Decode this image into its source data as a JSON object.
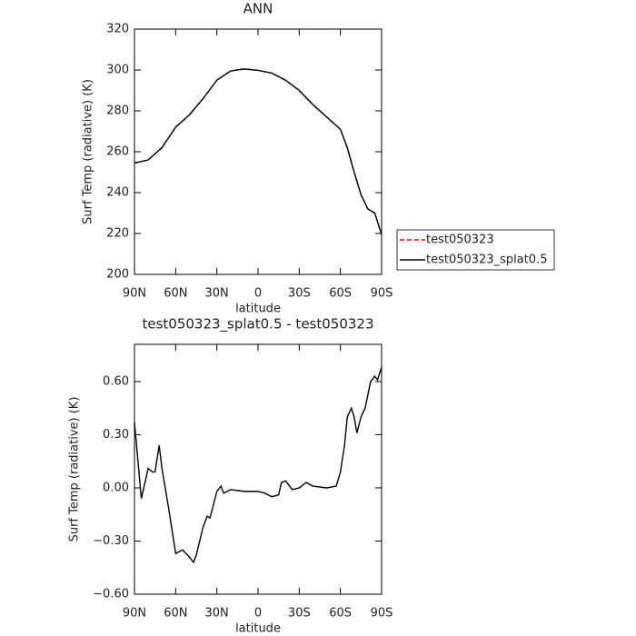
{
  "chart_data": [
    {
      "type": "line",
      "title": "ANN",
      "xlabel": "latitude",
      "ylabel": "Surf Temp (radiative) (K)",
      "x": [
        90,
        80,
        70,
        60,
        50,
        40,
        30,
        20,
        10,
        0,
        -10,
        -20,
        -30,
        -40,
        -50,
        -60,
        -65,
        -70,
        -75,
        -80,
        -85,
        -90
      ],
      "series": [
        {
          "name": "test050323",
          "color": "#e00000",
          "dash": true,
          "values": [
            254.5,
            256,
            262,
            272,
            278,
            286,
            295,
            299.5,
            300.5,
            299.8,
            298.5,
            295,
            290,
            283,
            277,
            271,
            262,
            250,
            239,
            232,
            230,
            219.5
          ]
        },
        {
          "name": "test050323_splat0.5",
          "color": "#000000",
          "dash": false,
          "values": [
            254.5,
            256,
            262,
            272,
            278,
            286,
            295,
            299.5,
            300.5,
            299.8,
            298.5,
            295,
            290,
            283,
            277,
            271,
            262,
            250,
            239,
            232,
            230,
            219.5
          ]
        }
      ],
      "xlim": [
        90,
        -90
      ],
      "xticks": [
        {
          "value": 90,
          "label": "90N"
        },
        {
          "value": 60,
          "label": "60N"
        },
        {
          "value": 30,
          "label": "30N"
        },
        0,
        {
          "value": -30,
          "label": "30S"
        },
        {
          "value": -60,
          "label": "60S"
        },
        {
          "value": -90,
          "label": "90S"
        }
      ],
      "ylim": [
        200,
        320
      ],
      "yticks": [
        200,
        220,
        240,
        260,
        280,
        300,
        320
      ],
      "legend": "right"
    },
    {
      "type": "line",
      "title": "test050323_splat0.5 - test050323",
      "xlabel": "latitude",
      "ylabel": "Surf Temp (radiative) (K)",
      "x": [
        90,
        85,
        80,
        77,
        75,
        72,
        70,
        65,
        60,
        55,
        50,
        47,
        45,
        40,
        37,
        35,
        30,
        27,
        25,
        20,
        10,
        0,
        -5,
        -10,
        -15,
        -17,
        -20,
        -25,
        -30,
        -35,
        -40,
        -50,
        -57,
        -60,
        -63,
        -65,
        -68,
        -70,
        -72,
        -75,
        -78,
        -82,
        -85,
        -87,
        -90
      ],
      "values": [
        0.37,
        -0.06,
        0.11,
        0.09,
        0.09,
        0.24,
        0.11,
        -0.12,
        -0.37,
        -0.35,
        -0.39,
        -0.42,
        -0.38,
        -0.22,
        -0.16,
        -0.17,
        -0.02,
        0.01,
        -0.03,
        -0.01,
        -0.02,
        -0.02,
        -0.03,
        -0.05,
        -0.04,
        0.03,
        0.04,
        -0.01,
        0.0,
        0.03,
        0.01,
        0.0,
        0.01,
        0.09,
        0.24,
        0.4,
        0.45,
        0.4,
        0.31,
        0.4,
        0.45,
        0.6,
        0.63,
        0.61,
        0.68
      ],
      "color": "#000000",
      "xlim": [
        90,
        -90
      ],
      "xticks": [
        {
          "value": 90,
          "label": "90N"
        },
        {
          "value": 60,
          "label": "60N"
        },
        {
          "value": 30,
          "label": "30N"
        },
        0,
        {
          "value": -30,
          "label": "30S"
        },
        {
          "value": -60,
          "label": "60S"
        },
        {
          "value": -90,
          "label": "90S"
        }
      ],
      "ylim": [
        -0.6,
        0.81
      ],
      "yticks": [
        {
          "value": -0.6,
          "label": "−0.60"
        },
        {
          "value": -0.3,
          "label": "−0.30"
        },
        {
          "value": 0,
          "label": "0.00"
        },
        {
          "value": 0.3,
          "label": "0.30"
        },
        {
          "value": 0.6,
          "label": "0.60"
        }
      ]
    }
  ]
}
